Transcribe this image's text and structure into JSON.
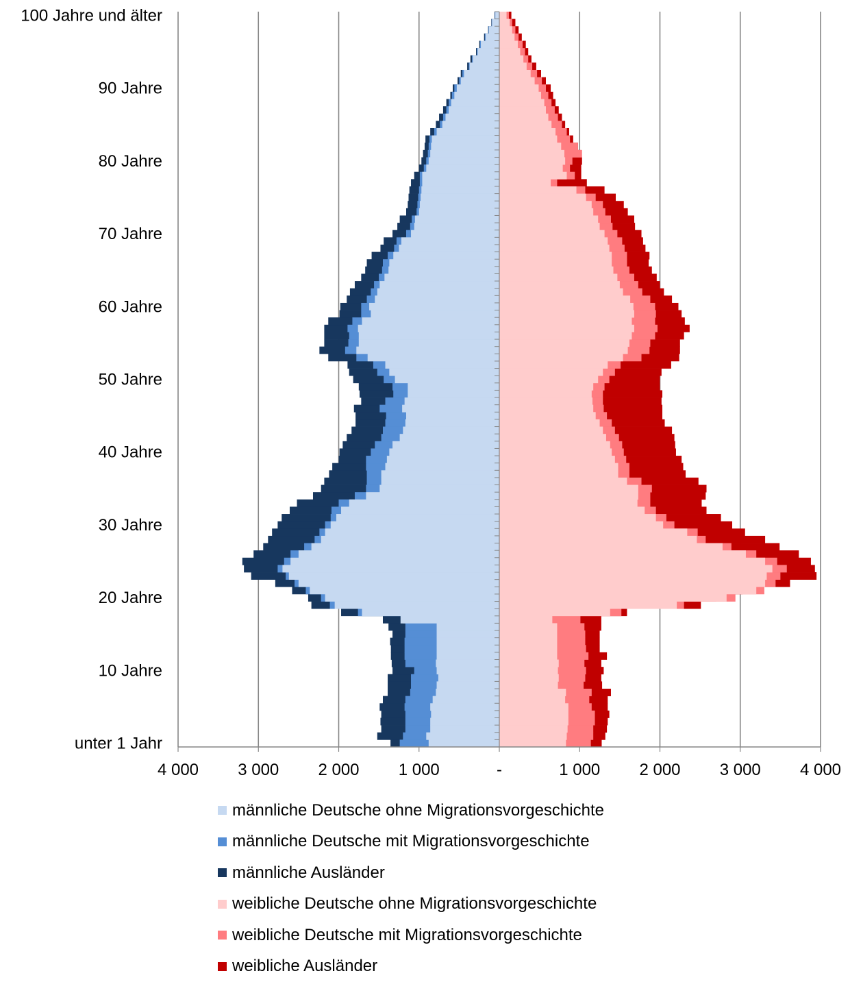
{
  "chart_data": {
    "type": "population-pyramid",
    "orientation": "horizontal-bar",
    "ages": [
      "unter 1 Jahr",
      "1",
      "2",
      "3",
      "4",
      "5",
      "6",
      "7",
      "8",
      "9",
      "10",
      "11",
      "12",
      "13",
      "14",
      "15",
      "16",
      "17",
      "18",
      "19",
      "20",
      "21",
      "22",
      "23",
      "24",
      "25",
      "26",
      "27",
      "28",
      "29",
      "30",
      "31",
      "32",
      "33",
      "34",
      "35",
      "36",
      "37",
      "38",
      "39",
      "40",
      "41",
      "42",
      "43",
      "44",
      "45",
      "46",
      "47",
      "48",
      "49",
      "50",
      "51",
      "52",
      "53",
      "54",
      "55",
      "56",
      "57",
      "58",
      "59",
      "60",
      "61",
      "62",
      "63",
      "64",
      "65",
      "66",
      "67",
      "68",
      "69",
      "70",
      "71",
      "72",
      "73",
      "74",
      "75",
      "76",
      "77",
      "78",
      "79",
      "80",
      "81",
      "82",
      "83",
      "84",
      "85",
      "86",
      "87",
      "88",
      "89",
      "90",
      "91",
      "92",
      "93",
      "94",
      "95",
      "96",
      "97",
      "98",
      "99",
      "100 Jahre und älter"
    ],
    "y_tick_labels": [
      {
        "age_index": 0,
        "label": "unter 1 Jahr"
      },
      {
        "age_index": 10,
        "label": "10 Jahre"
      },
      {
        "age_index": 20,
        "label": "20 Jahre"
      },
      {
        "age_index": 30,
        "label": "30 Jahre"
      },
      {
        "age_index": 40,
        "label": "40 Jahre"
      },
      {
        "age_index": 50,
        "label": "50 Jahre"
      },
      {
        "age_index": 60,
        "label": "60 Jahre"
      },
      {
        "age_index": 70,
        "label": "70 Jahre"
      },
      {
        "age_index": 80,
        "label": "80 Jahre"
      },
      {
        "age_index": 90,
        "label": "90 Jahre"
      },
      {
        "age_index": 100,
        "label": "100 Jahre und älter"
      }
    ],
    "x_ticks": [
      {
        "value": -4000,
        "label": "4 000"
      },
      {
        "value": -3000,
        "label": "3 000"
      },
      {
        "value": -2000,
        "label": "2 000"
      },
      {
        "value": -1000,
        "label": "1 000"
      },
      {
        "value": 0,
        "label": "-"
      },
      {
        "value": 1000,
        "label": "1 000"
      },
      {
        "value": 2000,
        "label": "2 000"
      },
      {
        "value": 3000,
        "label": "3 000"
      },
      {
        "value": 4000,
        "label": "4 000"
      }
    ],
    "xlim": [
      -4000,
      4000
    ],
    "grid": "vertical",
    "legend_position": "bottom",
    "side_totals": {
      "male": [
        1355,
        1520,
        1470,
        1480,
        1470,
        1490,
        1450,
        1390,
        1390,
        1390,
        1330,
        1340,
        1350,
        1350,
        1360,
        1330,
        1380,
        1450,
        1970,
        2340,
        2380,
        2580,
        2790,
        3090,
        3180,
        3200,
        3060,
        2940,
        2880,
        2830,
        2760,
        2710,
        2610,
        2520,
        2320,
        2220,
        2180,
        2120,
        2080,
        2000,
        1990,
        1950,
        1900,
        1840,
        1790,
        1790,
        1810,
        1720,
        1740,
        1750,
        1820,
        1870,
        1890,
        2130,
        2240,
        2180,
        2180,
        2180,
        2130,
        1990,
        1980,
        1900,
        1860,
        1800,
        1720,
        1670,
        1650,
        1590,
        1480,
        1440,
        1330,
        1270,
        1240,
        1160,
        1140,
        1130,
        1120,
        1100,
        1060,
        1000,
        970,
        950,
        930,
        920,
        860,
        790,
        750,
        700,
        660,
        610,
        580,
        520,
        480,
        400,
        360,
        290,
        250,
        190,
        140,
        100,
        60
      ],
      "female": [
        1275,
        1320,
        1340,
        1350,
        1370,
        1350,
        1350,
        1390,
        1280,
        1270,
        1300,
        1270,
        1340,
        1250,
        1250,
        1250,
        1270,
        1270,
        1590,
        2510,
        2700,
        3030,
        3620,
        3950,
        3930,
        3880,
        3730,
        3490,
        3310,
        3060,
        2900,
        2760,
        2580,
        2520,
        2570,
        2580,
        2480,
        2320,
        2290,
        2270,
        2200,
        2190,
        2180,
        2150,
        2060,
        2030,
        2030,
        2020,
        2030,
        2000,
        2000,
        2020,
        2140,
        2240,
        2250,
        2250,
        2300,
        2370,
        2310,
        2270,
        2230,
        2150,
        2050,
        2000,
        1960,
        1900,
        1860,
        1870,
        1820,
        1790,
        1770,
        1690,
        1680,
        1600,
        1550,
        1450,
        1310,
        1090,
        1020,
        1020,
        1030,
        1010,
        980,
        920,
        870,
        820,
        780,
        740,
        700,
        670,
        640,
        580,
        520,
        460,
        400,
        360,
        330,
        280,
        240,
        200,
        150
      ]
    },
    "series": [
      {
        "name": "männliche Deutsche ohne Migrationsvorgeschichte",
        "side": "male",
        "color": "#c6d9f1",
        "values": [
          880,
          910,
          860,
          860,
          850,
          860,
          830,
          790,
          780,
          760,
          780,
          790,
          780,
          780,
          780,
          780,
          780,
          1230,
          1710,
          2050,
          2170,
          2360,
          2500,
          2620,
          2700,
          2600,
          2500,
          2340,
          2220,
          2170,
          2100,
          2030,
          1970,
          1870,
          1660,
          1490,
          1470,
          1470,
          1420,
          1400,
          1370,
          1330,
          1240,
          1200,
          1170,
          1160,
          1210,
          1180,
          1140,
          1140,
          1300,
          1370,
          1420,
          1640,
          1780,
          1750,
          1750,
          1760,
          1710,
          1600,
          1620,
          1550,
          1520,
          1490,
          1430,
          1380,
          1370,
          1320,
          1250,
          1220,
          1100,
          1060,
          1050,
          1000,
          990,
          980,
          970,
          960,
          960,
          910,
          880,
          860,
          850,
          840,
          780,
          710,
          670,
          630,
          600,
          560,
          530,
          480,
          440,
          370,
          330,
          270,
          230,
          170,
          130,
          90,
          50
        ]
      },
      {
        "name": "männliche Deutsche mit Migrationsvorgeschichte",
        "side": "male",
        "color": "#558ed5",
        "values": [
          1240,
          1200,
          1170,
          1170,
          1170,
          1180,
          1170,
          1110,
          1100,
          1100,
          1060,
          1170,
          1180,
          1180,
          1180,
          1170,
          1170,
          1200,
          1760,
          2110,
          2220,
          2410,
          2550,
          2660,
          2760,
          2680,
          2600,
          2430,
          2300,
          2240,
          2170,
          2100,
          2090,
          2000,
          1800,
          1660,
          1650,
          1650,
          1660,
          1660,
          1600,
          1550,
          1470,
          1450,
          1420,
          1410,
          1490,
          1420,
          1320,
          1330,
          1440,
          1520,
          1570,
          1780,
          1920,
          1880,
          1870,
          1890,
          1830,
          1720,
          1720,
          1650,
          1600,
          1560,
          1500,
          1460,
          1450,
          1390,
          1310,
          1280,
          1160,
          1110,
          1090,
          1030,
          1020,
          1010,
          1000,
          990,
          990,
          940,
          910,
          890,
          880,
          870,
          810,
          740,
          700,
          660,
          630,
          590,
          560,
          500,
          460,
          380,
          340,
          280,
          240,
          180,
          135,
          95,
          55
        ]
      },
      {
        "name": "männliche Ausländer",
        "side": "male",
        "color": "#17375e",
        "values": [
          1355,
          1520,
          1470,
          1480,
          1470,
          1490,
          1450,
          1390,
          1390,
          1390,
          1330,
          1340,
          1350,
          1350,
          1360,
          1330,
          1380,
          1450,
          1970,
          2340,
          2380,
          2580,
          2790,
          3090,
          3180,
          3200,
          3060,
          2940,
          2880,
          2830,
          2760,
          2710,
          2610,
          2520,
          2320,
          2220,
          2180,
          2120,
          2080,
          2000,
          1990,
          1950,
          1900,
          1840,
          1790,
          1790,
          1810,
          1720,
          1740,
          1750,
          1820,
          1870,
          1890,
          2130,
          2240,
          2180,
          2180,
          2180,
          2130,
          1990,
          1980,
          1900,
          1860,
          1800,
          1720,
          1670,
          1650,
          1590,
          1480,
          1440,
          1330,
          1270,
          1240,
          1160,
          1140,
          1130,
          1120,
          1100,
          1060,
          1000,
          970,
          950,
          930,
          920,
          860,
          790,
          750,
          700,
          660,
          610,
          580,
          520,
          480,
          400,
          360,
          290,
          250,
          190,
          140,
          100,
          60
        ]
      },
      {
        "name": "weibliche Deutsche ohne Migrationsvorgeschichte",
        "side": "female",
        "color": "#ffcccc",
        "values": [
          830,
          840,
          850,
          860,
          860,
          860,
          820,
          830,
          730,
          740,
          730,
          740,
          720,
          720,
          720,
          720,
          720,
          660,
          1380,
          2210,
          2830,
          3200,
          3310,
          3330,
          3400,
          3310,
          3070,
          2780,
          2460,
          2340,
          2040,
          1950,
          1810,
          1720,
          1730,
          1730,
          1590,
          1480,
          1480,
          1440,
          1400,
          1380,
          1330,
          1290,
          1250,
          1200,
          1170,
          1160,
          1150,
          1170,
          1230,
          1290,
          1350,
          1540,
          1600,
          1620,
          1650,
          1680,
          1650,
          1680,
          1670,
          1630,
          1540,
          1500,
          1470,
          1420,
          1400,
          1400,
          1370,
          1350,
          1310,
          1250,
          1230,
          1170,
          1150,
          1080,
          960,
          640,
          840,
          790,
          820,
          810,
          770,
          720,
          700,
          650,
          610,
          580,
          560,
          520,
          490,
          440,
          390,
          340,
          300,
          260,
          230,
          190,
          160,
          130,
          90
        ]
      },
      {
        "name": "weibliche Deutsche mit Migrationsvorgeschichte",
        "side": "female",
        "color": "#ff7c80",
        "values": [
          1140,
          1170,
          1170,
          1190,
          1190,
          1150,
          1120,
          1150,
          1050,
          1070,
          1080,
          1060,
          1110,
          1080,
          1070,
          1070,
          1060,
          1010,
          1520,
          2300,
          2940,
          3300,
          3440,
          3500,
          3580,
          3460,
          3200,
          2890,
          2570,
          2470,
          2180,
          2080,
          1950,
          1880,
          1880,
          1900,
          1770,
          1620,
          1620,
          1580,
          1550,
          1530,
          1490,
          1440,
          1400,
          1340,
          1300,
          1290,
          1290,
          1310,
          1370,
          1440,
          1510,
          1770,
          1870,
          1880,
          1940,
          1970,
          1940,
          1950,
          1940,
          1880,
          1780,
          1730,
          1680,
          1620,
          1590,
          1590,
          1560,
          1530,
          1470,
          1410,
          1390,
          1320,
          1290,
          1200,
          1070,
          720,
          940,
          880,
          910,
          1030,
          980,
          880,
          840,
          780,
          730,
          690,
          650,
          610,
          580,
          530,
          470,
          410,
          360,
          320,
          290,
          240,
          200,
          160,
          120
        ]
      },
      {
        "name": "weibliche Ausländer",
        "side": "female",
        "color": "#c00000",
        "values": [
          1275,
          1320,
          1340,
          1350,
          1370,
          1350,
          1350,
          1390,
          1280,
          1270,
          1300,
          1270,
          1340,
          1250,
          1250,
          1250,
          1270,
          1270,
          1590,
          2510,
          2700,
          3030,
          3620,
          3950,
          3930,
          3880,
          3730,
          3490,
          3310,
          3060,
          2900,
          2760,
          2580,
          2520,
          2570,
          2580,
          2480,
          2320,
          2290,
          2270,
          2200,
          2190,
          2180,
          2150,
          2060,
          2030,
          2030,
          2020,
          2030,
          2000,
          2000,
          2020,
          2140,
          2240,
          2250,
          2250,
          2300,
          2370,
          2310,
          2270,
          2230,
          2150,
          2050,
          2000,
          1960,
          1900,
          1860,
          1870,
          1820,
          1790,
          1770,
          1690,
          1680,
          1600,
          1550,
          1450,
          1310,
          1090,
          1020,
          1020,
          1030,
          1010,
          980,
          920,
          870,
          820,
          780,
          740,
          700,
          670,
          640,
          580,
          520,
          460,
          400,
          360,
          330,
          280,
          240,
          200,
          150
        ]
      }
    ]
  }
}
